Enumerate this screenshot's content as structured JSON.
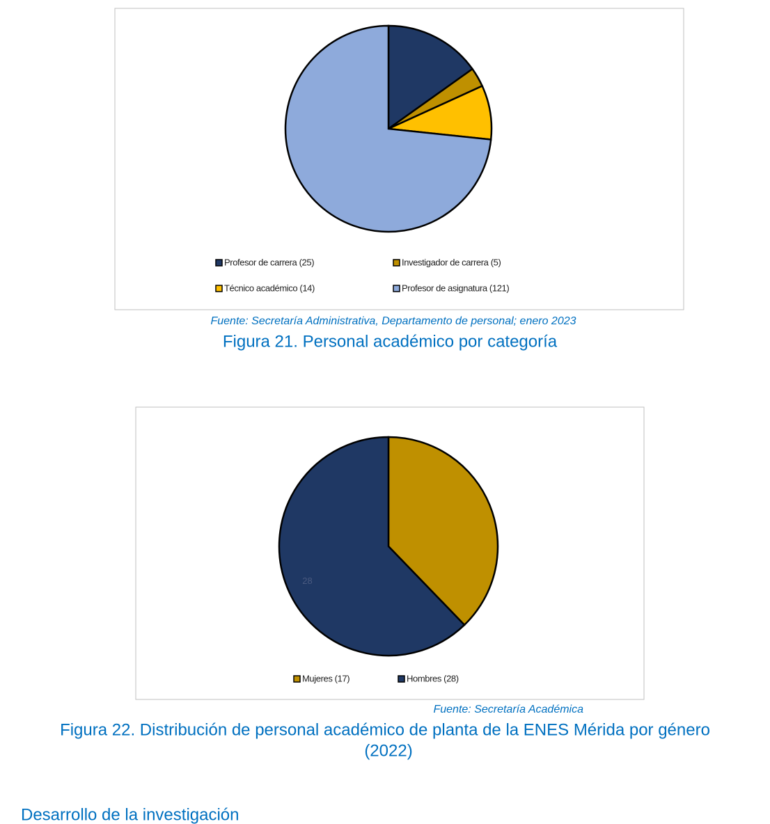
{
  "chart_data": [
    {
      "type": "pie",
      "categories": [
        "Profesor de carrera (25)",
        "Investigador de carrera (5)",
        "Técnico académico (14)",
        "Profesor de asignatura (121)"
      ],
      "values": [
        25,
        5,
        14,
        121
      ],
      "colors": [
        "#1f3864",
        "#bf9000",
        "#ffc000",
        "#8eaadb"
      ]
    },
    {
      "type": "pie",
      "categories": [
        "Mujeres (17)",
        "Hombres (28)"
      ],
      "values": [
        17,
        28
      ],
      "colors": [
        "#bf9000",
        "#1f3864"
      ],
      "data_labels": [
        false,
        true
      ]
    }
  ],
  "captions": {
    "source_1": "Fuente: Secretaría Administrativa, Departamento de personal; enero 2023",
    "figure_1": "Figura 21. Personal académico por categoría",
    "source_2": "Fuente: Secretaría Académica",
    "figure_2": "Figura 22. Distribución de personal académico de planta de la ENES Mérida por género",
    "figure_2_year": "(2022)",
    "section": "Desarrollo de la investigación"
  }
}
